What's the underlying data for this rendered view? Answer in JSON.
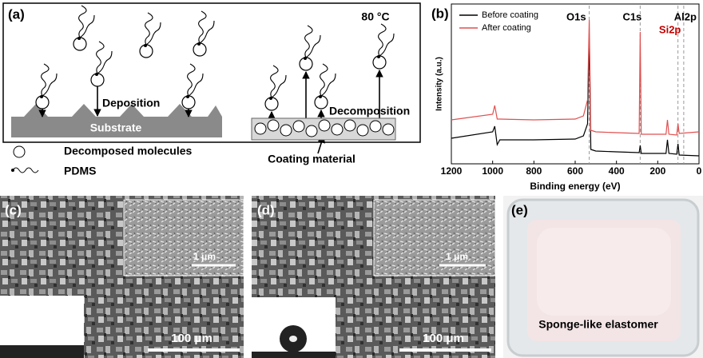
{
  "panel_a": {
    "label": "(a)",
    "temperature": "80 °C",
    "deposition": "Deposition",
    "substrate": "Substrate",
    "decomposition": "Decomposition",
    "coating_material": "Coating material",
    "legend": [
      "Decomposed molecules",
      "PDMS"
    ]
  },
  "chart_data": {
    "type": "line",
    "label": "(b)",
    "x_label": "Binding energy (eV)",
    "y_label": "Intensity (a.u.)",
    "xlim": [
      1200,
      0
    ],
    "xticks": [
      1200,
      1000,
      800,
      600,
      400,
      200,
      0
    ],
    "ylim": [
      0,
      100
    ],
    "x": [
      1200,
      1000,
      990,
      978,
      965,
      800,
      600,
      560,
      540,
      532,
      524,
      500,
      400,
      290,
      285,
      280,
      160,
      153,
      146,
      108,
      102,
      96,
      0
    ],
    "series": [
      {
        "name": "Before coating",
        "color": "#000000",
        "values": [
          16,
          20,
          23.5,
          12,
          15,
          15,
          15.5,
          17.5,
          25,
          80,
          9,
          8,
          7.5,
          7,
          11.5,
          6.5,
          6.5,
          15,
          6.5,
          6,
          12.5,
          5.5,
          5
        ]
      },
      {
        "name": "After coating",
        "color": "#e05050",
        "values": [
          27.5,
          31,
          36.5,
          28,
          28,
          27.5,
          28,
          30,
          40,
          90,
          21,
          20,
          19.5,
          19,
          82.5,
          18.5,
          18.5,
          27.5,
          18.5,
          18,
          25,
          19,
          20
        ]
      }
    ],
    "annotations": [
      {
        "text": "O1s",
        "x": 532,
        "color": "#000000"
      },
      {
        "text": "C1s",
        "x": 285,
        "color": "#000000"
      },
      {
        "text": "Si2p",
        "x": 102,
        "color": "#c00000"
      },
      {
        "text": "Al2p",
        "x": 74,
        "color": "#000000"
      }
    ]
  },
  "panel_c": {
    "label": "(c)",
    "inset_scale": "1 μm",
    "scale": "100 μm"
  },
  "panel_d": {
    "label": "(d)",
    "inset_scale": "1 μm",
    "scale": "100 μm"
  },
  "panel_e": {
    "label": "(e)",
    "caption": "Sponge-like elastomer"
  }
}
